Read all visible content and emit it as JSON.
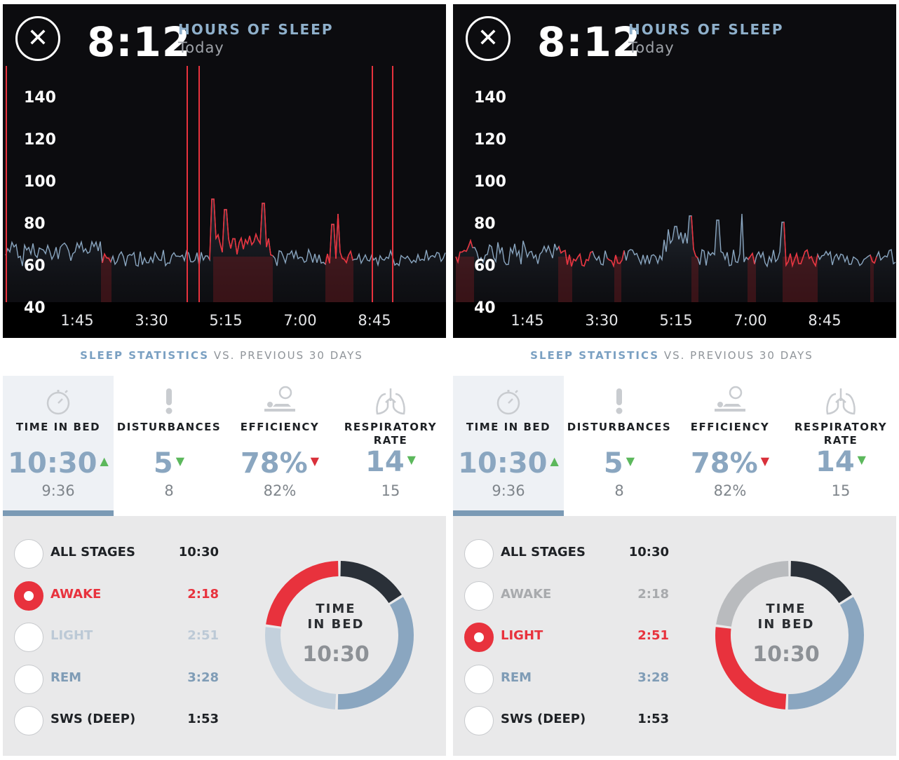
{
  "panels": [
    {
      "header": {
        "close_icon": "close-icon",
        "time": "8:12",
        "label": "HOURS OF SLEEP",
        "sub": "Today"
      },
      "chart": {
        "y_ticks": [
          "140",
          "120",
          "100",
          "80",
          "60",
          "40"
        ],
        "x_ticks": [
          "1:45",
          "3:30",
          "5:15",
          "7:00",
          "8:45"
        ],
        "awake_spikes": true
      },
      "stats_heading": {
        "highlight": "SLEEP STATISTICS",
        "rest": "VS. PREVIOUS 30 DAYS"
      },
      "stats": [
        {
          "title_1": "TIME IN BED",
          "title_2": "",
          "value": "10:30",
          "arrow": "▲",
          "prev": "9:36",
          "icon": "stopwatch-icon"
        },
        {
          "title_1": "DISTURBANCES",
          "title_2": "",
          "value": "5",
          "arrow": "▼",
          "prev": "8",
          "icon": "exclamation-icon"
        },
        {
          "title_1": "EFFICIENCY",
          "title_2": "",
          "value": "78%",
          "arrow": "▼",
          "prev": "82%",
          "icon": "sleeper-icon"
        },
        {
          "title_1": "RESPIRATORY",
          "title_2": "RATE",
          "value": "14",
          "arrow": "▼",
          "prev": "15",
          "icon": "lungs-icon"
        }
      ],
      "stages": [
        {
          "name": "ALL STAGES",
          "dur": "10:30"
        },
        {
          "name": "AWAKE",
          "dur": "2:18"
        },
        {
          "name": "LIGHT",
          "dur": "2:51"
        },
        {
          "name": "REM",
          "dur": "3:28"
        },
        {
          "name": "SWS (DEEP)",
          "dur": "1:53"
        }
      ],
      "selected_stage": "AWAKE",
      "donut": {
        "title_1": "TIME",
        "title_2": "IN BED",
        "value": "10:30"
      }
    },
    {
      "header": {
        "close_icon": "close-icon",
        "time": "8:12",
        "label": "HOURS OF SLEEP",
        "sub": "Today"
      },
      "chart": {
        "y_ticks": [
          "140",
          "120",
          "100",
          "80",
          "60",
          "40"
        ],
        "x_ticks": [
          "1:45",
          "3:30",
          "5:15",
          "7:00",
          "8:45"
        ],
        "awake_spikes": false
      },
      "stats_heading": {
        "highlight": "SLEEP STATISTICS",
        "rest": "VS. PREVIOUS 30 DAYS"
      },
      "stats": [
        {
          "title_1": "TIME IN BED",
          "title_2": "",
          "value": "10:30",
          "arrow": "▲",
          "prev": "9:36",
          "icon": "stopwatch-icon"
        },
        {
          "title_1": "DISTURBANCES",
          "title_2": "",
          "value": "5",
          "arrow": "▼",
          "prev": "8",
          "icon": "exclamation-icon"
        },
        {
          "title_1": "EFFICIENCY",
          "title_2": "",
          "value": "78%",
          "arrow": "▼",
          "prev": "82%",
          "icon": "sleeper-icon"
        },
        {
          "title_1": "RESPIRATORY",
          "title_2": "RATE",
          "value": "14",
          "arrow": "▼",
          "prev": "15",
          "icon": "lungs-icon"
        }
      ],
      "stages": [
        {
          "name": "ALL STAGES",
          "dur": "10:30"
        },
        {
          "name": "AWAKE",
          "dur": "2:18"
        },
        {
          "name": "LIGHT",
          "dur": "2:51"
        },
        {
          "name": "REM",
          "dur": "3:28"
        },
        {
          "name": "SWS (DEEP)",
          "dur": "1:53"
        }
      ],
      "selected_stage": "LIGHT",
      "donut": {
        "title_1": "TIME",
        "title_2": "IN BED",
        "value": "10:30"
      }
    }
  ],
  "colors": {
    "accent_red": "#e8323d",
    "blue_main": "#8aa6c0",
    "light_blue": "#c3d0dc",
    "dark_navy": "#2a3038",
    "grey_faded": "#b9bbbe",
    "up_green": "#5cb85c",
    "down_red": "#d9303a"
  }
}
